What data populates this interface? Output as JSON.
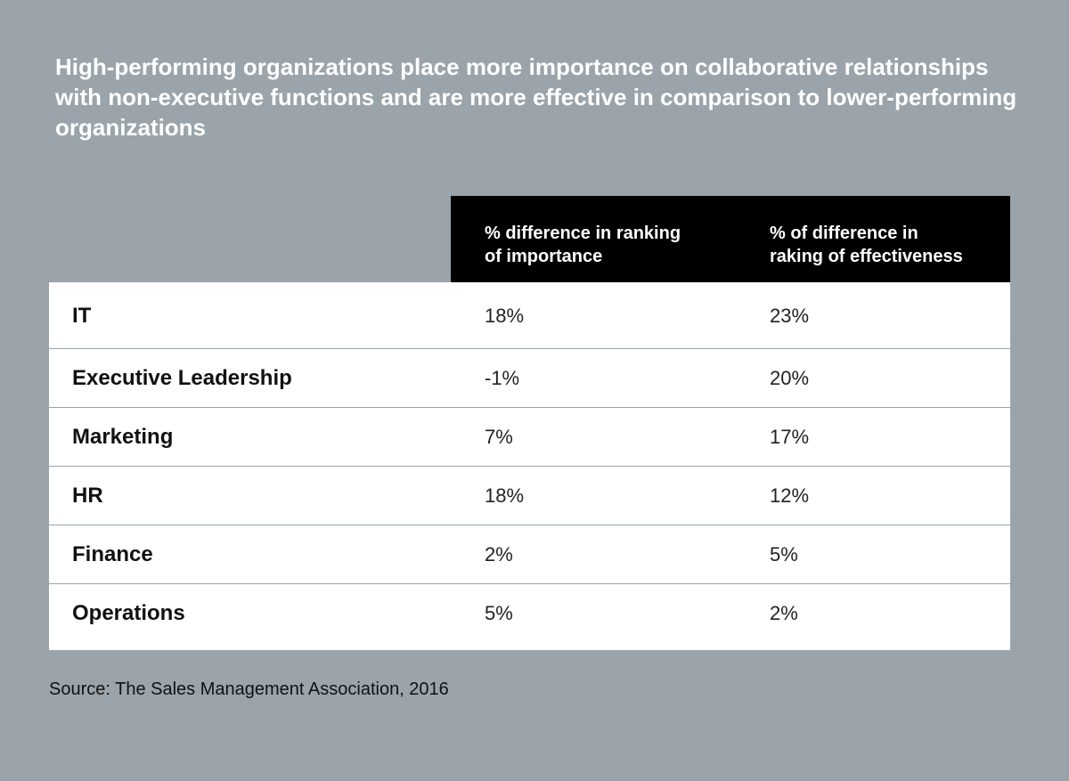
{
  "chart_data": {
    "type": "table",
    "title": "High-performing organizations place more importance on collaborative relationships with non-executive functions and are more effective in comparison to lower-performing organizations",
    "columns": [
      "% difference in ranking of importance",
      "% of difference in raking of effectiveness"
    ],
    "rows": [
      {
        "label": "IT",
        "importance": "18%",
        "effectiveness": "23%"
      },
      {
        "label": "Executive Leadership",
        "importance": "-1%",
        "effectiveness": "20%"
      },
      {
        "label": "Marketing",
        "importance": "7%",
        "effectiveness": "17%"
      },
      {
        "label": "HR",
        "importance": "18%",
        "effectiveness": "12%"
      },
      {
        "label": "Finance",
        "importance": "2%",
        "effectiveness": "5%"
      },
      {
        "label": "Operations",
        "importance": "5%",
        "effectiveness": "2%"
      }
    ],
    "source": "Source: The Sales Management Association, 2016"
  },
  "header": {
    "col1_line1": "% difference in ranking",
    "col1_line2": "of importance",
    "col2_line1": "% of difference in",
    "col2_line2": "raking of effectiveness"
  },
  "colors": {
    "background": "#9aa4aa",
    "header_bg": "#000000",
    "table_bg": "#ffffff"
  }
}
